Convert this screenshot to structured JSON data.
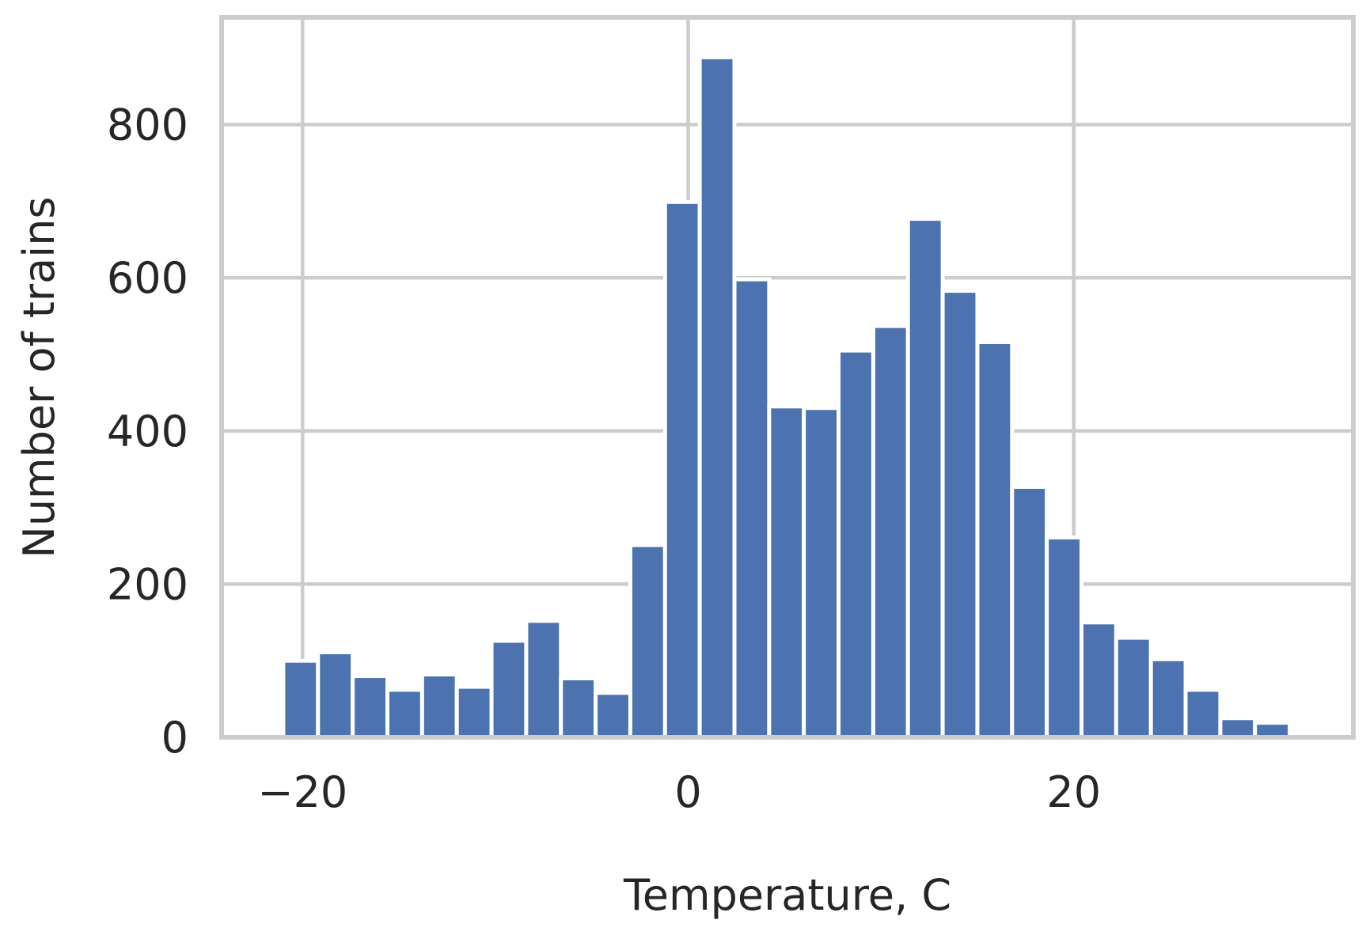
{
  "chart_data": {
    "type": "bar",
    "title": "",
    "xlabel": "Temperature, C",
    "ylabel": "Number of trains",
    "xlim": [
      -24.2,
      34.5
    ],
    "ylim": [
      0,
      940
    ],
    "x_ticks": [
      -20,
      0,
      20
    ],
    "x_tick_labels": [
      "−20",
      "0",
      "20"
    ],
    "y_ticks": [
      0,
      200,
      400,
      600,
      800
    ],
    "y_tick_labels": [
      "0",
      "200",
      "400",
      "600",
      "800"
    ],
    "grid": true,
    "legend": "none",
    "bar_color": "#4c72b0",
    "bin_edges": [
      -21.0,
      -19.2,
      -17.4,
      -15.6,
      -13.8,
      -12.0,
      -10.2,
      -8.4,
      -6.6,
      -4.8,
      -3.0,
      -1.2,
      0.6,
      2.4,
      4.2,
      6.0,
      7.8,
      9.6,
      11.4,
      13.2,
      15.0,
      16.8,
      18.6,
      20.4,
      22.2,
      24.0,
      25.8,
      27.6,
      29.4,
      31.2,
      33.0
    ],
    "values": [
      100,
      111,
      80,
      62,
      82,
      66,
      126,
      152,
      77,
      58,
      251,
      699,
      888,
      598,
      432,
      430,
      505,
      537,
      677,
      583,
      516,
      327,
      261,
      150,
      130,
      102,
      62,
      25,
      19,
      0
    ]
  }
}
